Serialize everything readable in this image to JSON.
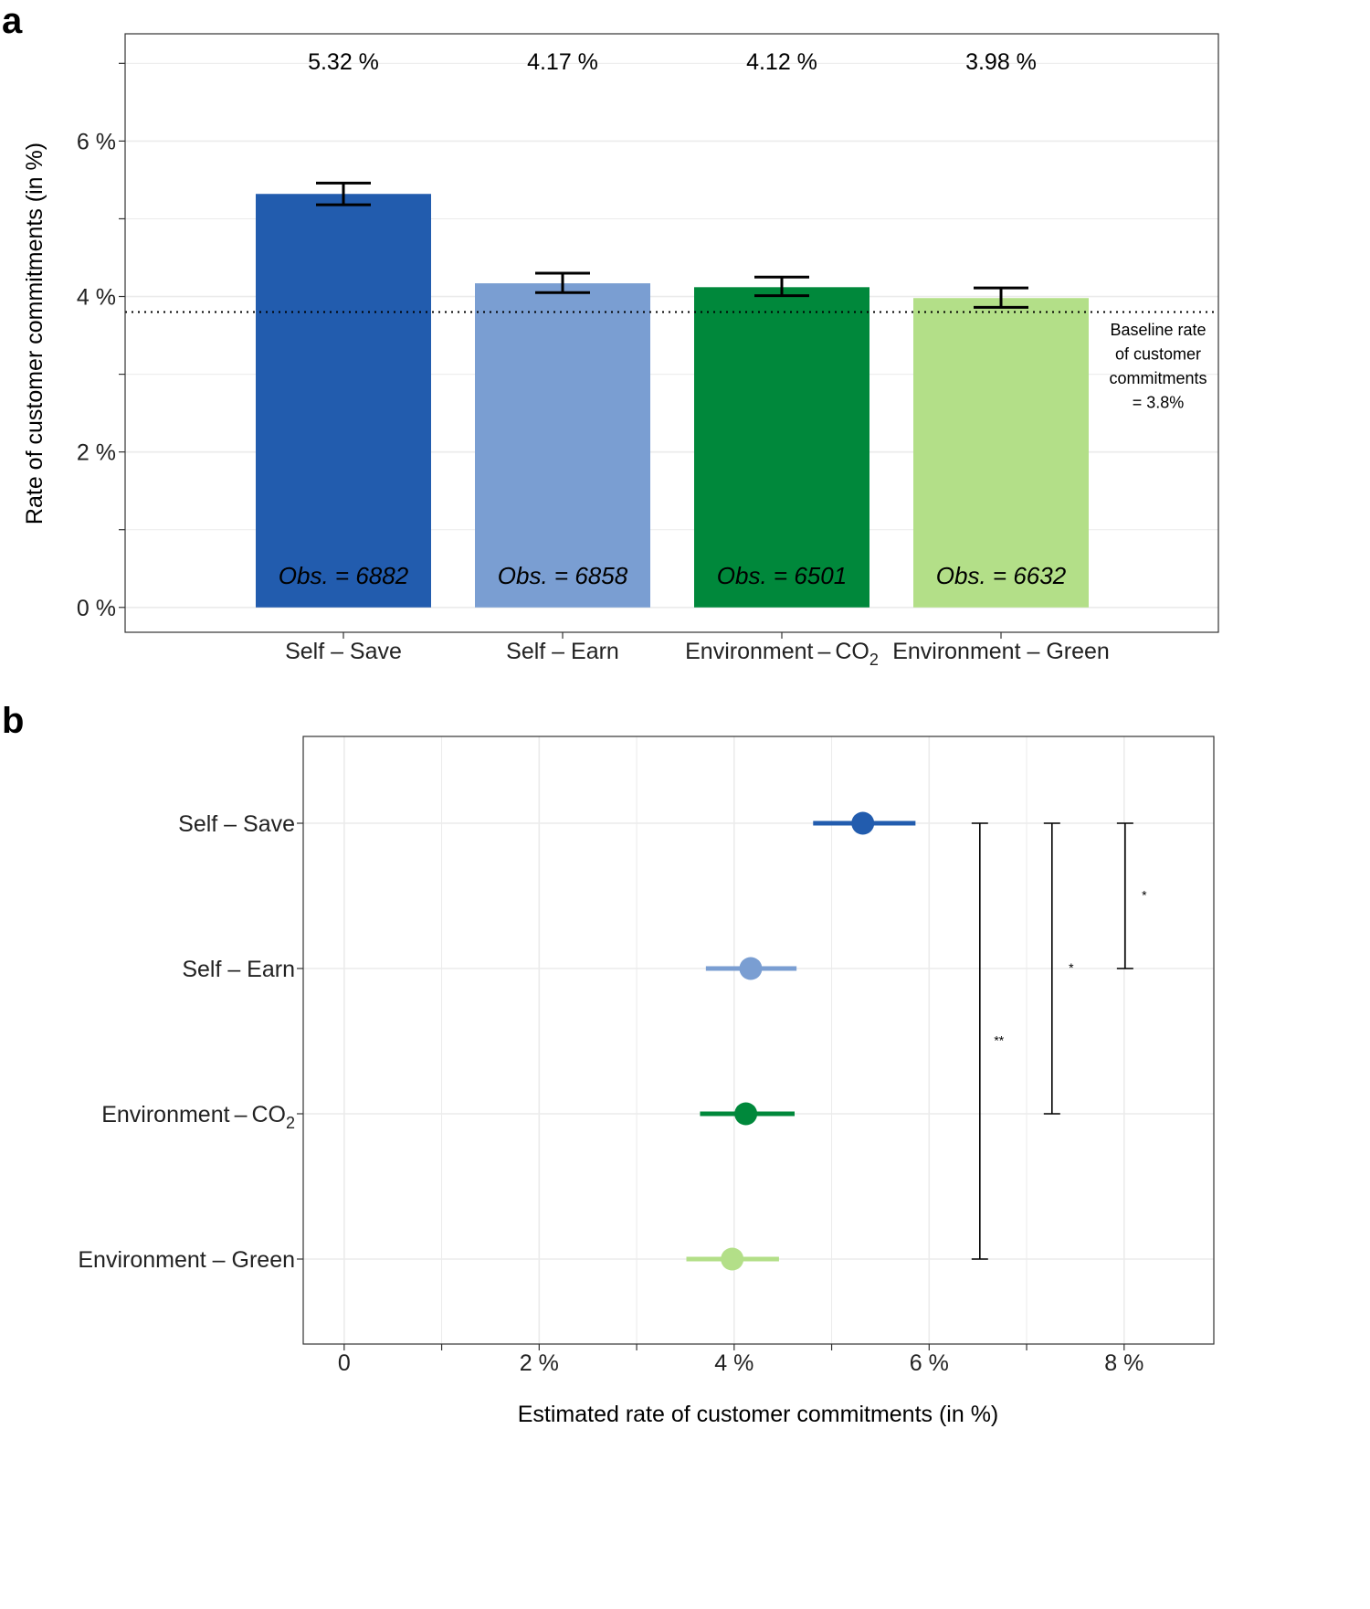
{
  "chart_data": [
    {
      "panel": "a",
      "type": "bar",
      "categories": [
        "Self – Save",
        "Self – Earn",
        "Environment – CO2",
        "Environment – Green"
      ],
      "category_parts": [
        {
          "main": "Self – Save",
          "sub": ""
        },
        {
          "main": "Self – Earn",
          "sub": ""
        },
        {
          "main": "Environment – CO",
          "sub": "2"
        },
        {
          "main": "Environment – Green",
          "sub": ""
        }
      ],
      "values": [
        5.32,
        4.17,
        4.12,
        3.98
      ],
      "value_labels": [
        "5.32 %",
        "4.17 %",
        "4.12 %",
        "3.98 %"
      ],
      "error_low": [
        5.18,
        4.05,
        4.01,
        3.86
      ],
      "error_high": [
        5.46,
        4.3,
        4.25,
        4.11
      ],
      "obs_labels": [
        "Obs. = 6882",
        "Obs. = 6858",
        "Obs. = 6501",
        "Obs. = 6632"
      ],
      "colors": [
        "#225cae",
        "#7a9ed2",
        "#00883b",
        "#b3df88"
      ],
      "baseline": 3.8,
      "baseline_note": [
        "Baseline rate",
        "of customer",
        "commitments",
        "= 3.8%"
      ],
      "ylabel": "Rate of customer commitments (in %)",
      "xlabel": "",
      "ylim": [
        -0.32,
        7.38
      ],
      "yticks": [
        0,
        2,
        4,
        6
      ],
      "ytick_labels": [
        "0 %",
        "2 %",
        "4 %",
        "6 %"
      ],
      "grid": true
    },
    {
      "panel": "b",
      "type": "scatter",
      "categories": [
        "Self – Save",
        "Self – Earn",
        "Environment – CO2",
        "Environment – Green"
      ],
      "category_parts": [
        {
          "main": "Self – Save",
          "sub": ""
        },
        {
          "main": "Self – Earn",
          "sub": ""
        },
        {
          "main": "Environment – CO",
          "sub": "2"
        },
        {
          "main": "Environment – Green",
          "sub": ""
        }
      ],
      "estimates": [
        5.32,
        4.17,
        4.12,
        3.98
      ],
      "ci_low": [
        4.81,
        3.71,
        3.65,
        3.51
      ],
      "ci_high": [
        5.86,
        4.64,
        4.62,
        4.46
      ],
      "colors": [
        "#225cae",
        "#7a9ed2",
        "#00883b",
        "#b3df88"
      ],
      "xlabel": "Estimated rate of customer commitments (in %)",
      "xlim": [
        -0.42,
        8.92
      ],
      "xticks": [
        0,
        2,
        4,
        6,
        8
      ],
      "xtick_labels": [
        "0",
        "2 %",
        "4 %",
        "6 %",
        "8 %"
      ],
      "significance": [
        {
          "from": 0,
          "to": 3,
          "x": 6.52,
          "label": "**"
        },
        {
          "from": 0,
          "to": 2,
          "x": 7.26,
          "label": "*"
        },
        {
          "from": 0,
          "to": 1,
          "x": 8.01,
          "label": "*"
        }
      ],
      "grid": true
    }
  ],
  "panel_letters": {
    "a": "a",
    "b": "b"
  }
}
